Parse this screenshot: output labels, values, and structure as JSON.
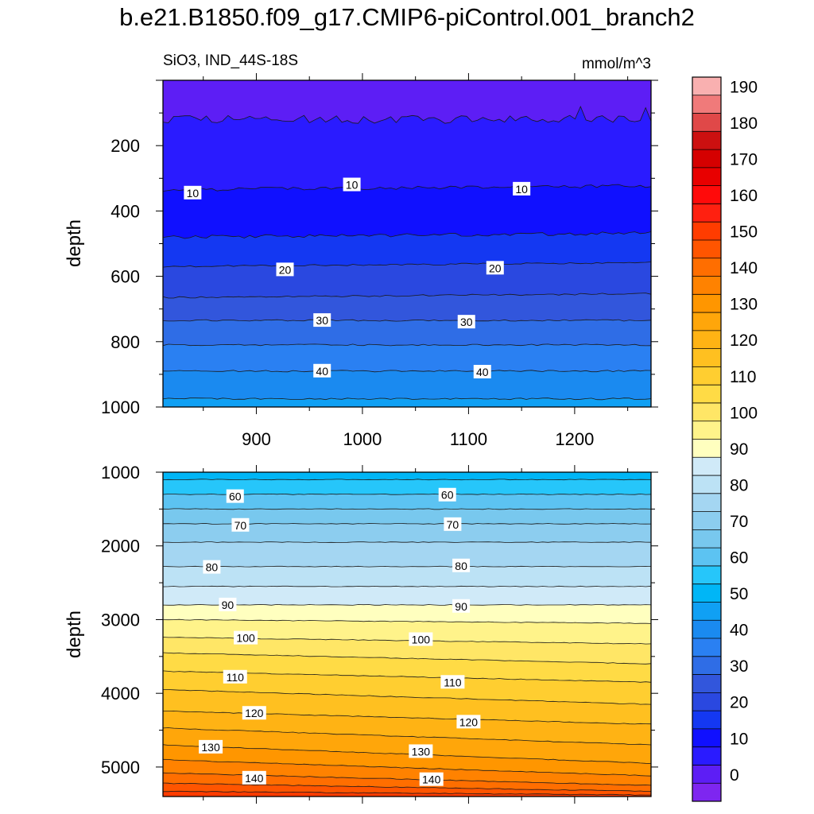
{
  "title": "b.e21.B1850.f09_g17.CMIP6-piControl.001_branch2",
  "chart_data": {
    "type": "contour",
    "variable_label": "SiO3, IND_44S-18S",
    "units": "mmol/m^3",
    "panels": [
      {
        "name": "upper",
        "ylabel": "depth",
        "xlim": [
          812,
          1272
        ],
        "ylim": [
          1000,
          0
        ],
        "xticks": [
          900,
          1000,
          1100,
          1200
        ],
        "yticks": [
          200,
          400,
          600,
          800,
          1000
        ],
        "contour_levels": [
          5,
          10,
          15,
          20,
          25,
          30,
          35,
          40,
          45
        ],
        "contour_depths": [
          120,
          335,
          480,
          570,
          665,
          735,
          810,
          890,
          975
        ],
        "contour_labels": [
          {
            "text": "10",
            "x": 840,
            "y": 345
          },
          {
            "text": "10",
            "x": 990,
            "y": 320
          },
          {
            "text": "10",
            "x": 1150,
            "y": 333
          },
          {
            "text": "20",
            "x": 927,
            "y": 580
          },
          {
            "text": "20",
            "x": 1125,
            "y": 575
          },
          {
            "text": "30",
            "x": 962,
            "y": 735
          },
          {
            "text": "30",
            "x": 1098,
            "y": 740
          },
          {
            "text": "40",
            "x": 962,
            "y": 890
          },
          {
            "text": "40",
            "x": 1113,
            "y": 893
          }
        ]
      },
      {
        "name": "lower",
        "ylabel": "depth",
        "xlim": [
          812,
          1272
        ],
        "ylim": [
          5400,
          1000
        ],
        "yticks": [
          1000,
          2000,
          3000,
          4000,
          5000
        ],
        "contour_levels": [
          55,
          60,
          65,
          70,
          75,
          80,
          85,
          90,
          95,
          100,
          105,
          110,
          115,
          120,
          125,
          130,
          135,
          140,
          145,
          150
        ],
        "contour_depths_left": [
          1100,
          1300,
          1500,
          1700,
          1950,
          2280,
          2550,
          2800,
          3000,
          3240,
          3450,
          3700,
          3950,
          4240,
          4470,
          4700,
          4900,
          5080,
          5220,
          5330
        ],
        "contour_depths_right": [
          1100,
          1300,
          1500,
          1700,
          1950,
          2280,
          2550,
          2800,
          3050,
          3330,
          3600,
          3850,
          4150,
          4420,
          4700,
          4950,
          5120,
          5250,
          5330,
          5380
        ],
        "contour_labels": [
          {
            "text": "60",
            "x": 880,
            "y": 1330
          },
          {
            "text": "60",
            "x": 1080,
            "y": 1310
          },
          {
            "text": "70",
            "x": 885,
            "y": 1720
          },
          {
            "text": "70",
            "x": 1085,
            "y": 1710
          },
          {
            "text": "80",
            "x": 858,
            "y": 2290
          },
          {
            "text": "80",
            "x": 1093,
            "y": 2270
          },
          {
            "text": "90",
            "x": 873,
            "y": 2800
          },
          {
            "text": "90",
            "x": 1093,
            "y": 2820
          },
          {
            "text": "100",
            "x": 890,
            "y": 3250
          },
          {
            "text": "100",
            "x": 1055,
            "y": 3270
          },
          {
            "text": "110",
            "x": 880,
            "y": 3780
          },
          {
            "text": "110",
            "x": 1085,
            "y": 3850
          },
          {
            "text": "120",
            "x": 898,
            "y": 4270
          },
          {
            "text": "120",
            "x": 1100,
            "y": 4390
          },
          {
            "text": "130",
            "x": 857,
            "y": 4730
          },
          {
            "text": "130",
            "x": 1055,
            "y": 4790
          },
          {
            "text": "140",
            "x": 898,
            "y": 5150
          },
          {
            "text": "140",
            "x": 1065,
            "y": 5170
          }
        ]
      }
    ],
    "colorbar": {
      "levels": [
        -5,
        0,
        5,
        10,
        15,
        20,
        25,
        30,
        35,
        40,
        45,
        50,
        55,
        60,
        65,
        70,
        75,
        80,
        85,
        90,
        95,
        100,
        105,
        110,
        115,
        120,
        125,
        130,
        135,
        140,
        145,
        150,
        155,
        160,
        165,
        170,
        175,
        180,
        185,
        190,
        195
      ],
      "tick_labels": [
        "0",
        "10",
        "20",
        "30",
        "40",
        "50",
        "60",
        "70",
        "80",
        "90",
        "100",
        "110",
        "120",
        "130",
        "140",
        "150",
        "160",
        "170",
        "180",
        "190"
      ],
      "colors": [
        "#7e26f0",
        "#5d1ef5",
        "#2a1bff",
        "#1010ff",
        "#1438f2",
        "#2a48e0",
        "#3256dc",
        "#2f6de6",
        "#2a80f2",
        "#1a8af0",
        "#10a0f4",
        "#00b6f6",
        "#26c6fa",
        "#5cc3f2",
        "#78c8ee",
        "#8ccdef",
        "#a4d6f2",
        "#bce2f5",
        "#d0eaf8",
        "#ffffbf",
        "#fff38a",
        "#ffe666",
        "#ffdb45",
        "#ffce30",
        "#ffc020",
        "#ffb314",
        "#ffa60a",
        "#ff9600",
        "#ff8200",
        "#ff6e00",
        "#ff5500",
        "#ff3c00",
        "#ff2010",
        "#ff0a0a",
        "#e80000",
        "#d50000",
        "#cc1010",
        "#e04848",
        "#f07a7a",
        "#f9b0b0"
      ]
    }
  }
}
